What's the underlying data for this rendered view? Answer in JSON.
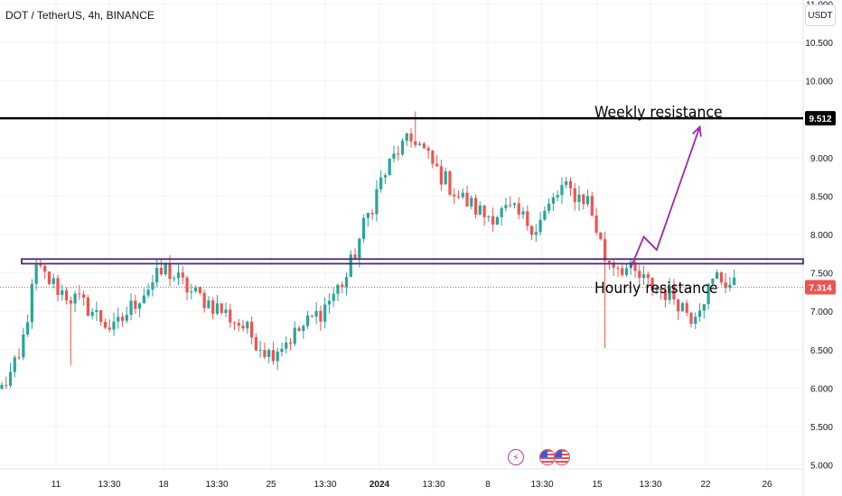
{
  "header": {
    "symbol_title": "DOT / TetherUS, 4h, BINANCE",
    "currency_label": "USDT"
  },
  "annotations": {
    "weekly_label": "Weekly resistance",
    "hourly_label": "Hourly resistance"
  },
  "events": [
    {
      "icon": "lightning-event-icon"
    },
    {
      "icon": "us-flag-event-icon"
    },
    {
      "icon": "us-flag-event-icon"
    }
  ],
  "colors": {
    "up_candle": "#26a69a",
    "down_candle": "#ef5350",
    "weekly_line": "#000000",
    "hourly_band": "#4a2a7a",
    "projection_arrow": "#9c27b0",
    "last_price_line": "#ef5350"
  },
  "chart_data": {
    "type": "candlestick",
    "symbol": "DOT / TetherUS",
    "interval": "4h",
    "exchange": "BINANCE",
    "ylim": [
      4.95,
      11.05
    ],
    "y_ticks": [
      "11.000",
      "10.500",
      "10.000",
      "9.000",
      "8.500",
      "8.000",
      "7.500",
      "7.000",
      "6.500",
      "6.000",
      "5.500",
      "5.000"
    ],
    "x_ticks": [
      "11",
      "13:30",
      "18",
      "13:30",
      "25",
      "13:30",
      "2024",
      "13:30",
      "8",
      "13:30",
      "15",
      "13:30",
      "22",
      "26"
    ],
    "levels": [
      {
        "name": "Weekly resistance",
        "value": 9.512,
        "label": "9.512"
      },
      {
        "name": "Hourly resistance",
        "value_top": 7.68,
        "value_bottom": 7.62
      }
    ],
    "last_price": {
      "value": 7.314,
      "label": "7.314"
    },
    "projection_path": [
      [
        146,
        7.57
      ],
      [
        149,
        7.97
      ],
      [
        152,
        7.8
      ],
      [
        162,
        9.4
      ]
    ],
    "key_closes": [
      [
        0,
        6.0
      ],
      [
        4,
        6.35
      ],
      [
        8,
        7.55
      ],
      [
        14,
        7.25
      ],
      [
        20,
        7.05
      ],
      [
        26,
        6.75
      ],
      [
        32,
        7.2
      ],
      [
        38,
        7.55
      ],
      [
        44,
        7.25
      ],
      [
        50,
        7.05
      ],
      [
        56,
        6.8
      ],
      [
        62,
        6.45
      ],
      [
        68,
        6.7
      ],
      [
        74,
        7.0
      ],
      [
        80,
        7.45
      ],
      [
        84,
        8.1
      ],
      [
        88,
        8.7
      ],
      [
        92,
        9.1
      ],
      [
        96,
        9.25
      ],
      [
        100,
        8.9
      ],
      [
        106,
        8.5
      ],
      [
        112,
        8.25
      ],
      [
        118,
        8.3
      ],
      [
        124,
        8.1
      ],
      [
        130,
        8.6
      ],
      [
        136,
        8.45
      ],
      [
        140,
        7.7
      ],
      [
        145,
        7.55
      ],
      [
        150,
        7.35
      ],
      [
        156,
        7.2
      ],
      [
        160,
        6.95
      ],
      [
        166,
        7.45
      ],
      [
        170,
        7.32
      ]
    ],
    "grid": true
  }
}
